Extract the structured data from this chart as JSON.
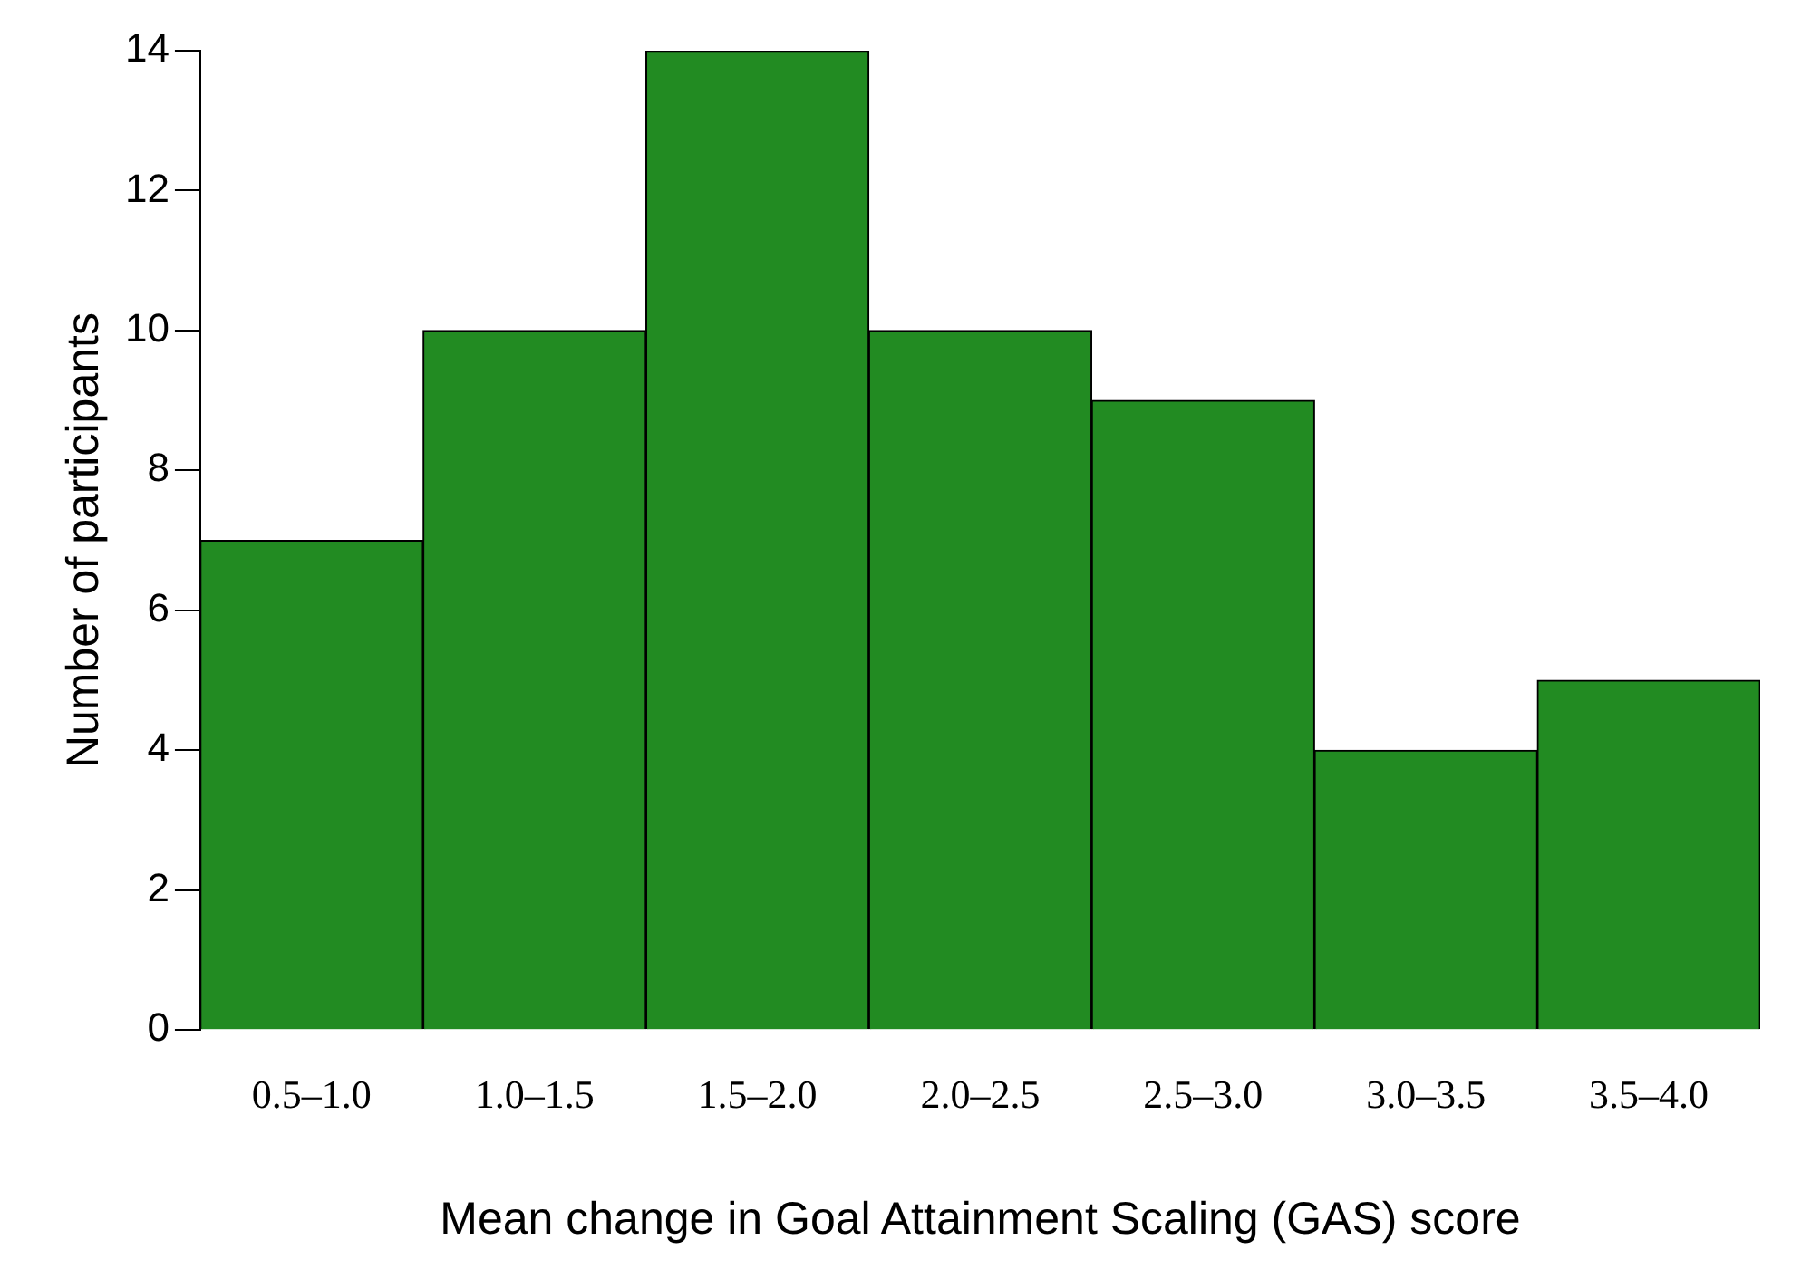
{
  "chart_data": {
    "type": "bar",
    "xlabel": "Mean change in Goal Attainment Scaling (GAS) score",
    "ylabel": "Number of participants",
    "categories": [
      "0.5–1.0",
      "1.0–1.5",
      "1.5–2.0",
      "2.0–2.5",
      "2.5–3.0",
      "3.0–3.5",
      "3.5–4.0"
    ],
    "values": [
      7,
      10,
      14,
      10,
      9,
      4,
      5
    ],
    "color": "#228b22",
    "ylim": [
      0,
      14
    ],
    "yticks": [
      0,
      2,
      4,
      6,
      8,
      10,
      12,
      14
    ],
    "grid": false,
    "legend": false
  }
}
